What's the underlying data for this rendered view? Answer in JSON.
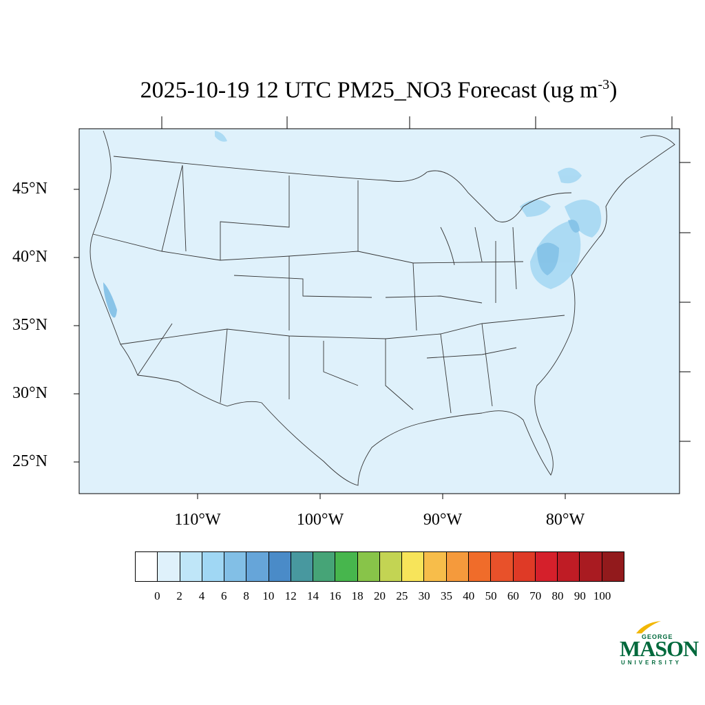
{
  "title": {
    "text": "2025-10-19 12 UTC PM25_NO3 Forecast (ug m",
    "superscript": "-3",
    "close": ")"
  },
  "map": {
    "background_color": "#dff1fb",
    "lat_labels": [
      "45°N",
      "40°N",
      "35°N",
      "30°N",
      "25°N"
    ],
    "lon_labels": [
      "110°W",
      "100°W",
      "90°W",
      "80°W"
    ]
  },
  "colorbar": {
    "colors": [
      "#ffffff",
      "#dff1fb",
      "#bfe6f8",
      "#a0d7f4",
      "#82bfe6",
      "#66a5d9",
      "#4a8bc8",
      "#48989f",
      "#46a477",
      "#47b64d",
      "#88c449",
      "#c3d453",
      "#f7e45a",
      "#f7bd4a",
      "#f59a3c",
      "#f06c2a",
      "#e8512a",
      "#df3a26",
      "#d5202b",
      "#bf1c25",
      "#a91b21",
      "#921a1c"
    ],
    "labels": [
      "0",
      "2",
      "4",
      "6",
      "8",
      "10",
      "12",
      "14",
      "16",
      "18",
      "20",
      "25",
      "30",
      "35",
      "40",
      "50",
      "60",
      "70",
      "80",
      "90",
      "100"
    ]
  },
  "logo": {
    "line1": "GEORGE",
    "line2": "MASON",
    "line3": "UNIVERSITY",
    "accent_color": "#f2b705",
    "brand_color": "#00693c"
  }
}
